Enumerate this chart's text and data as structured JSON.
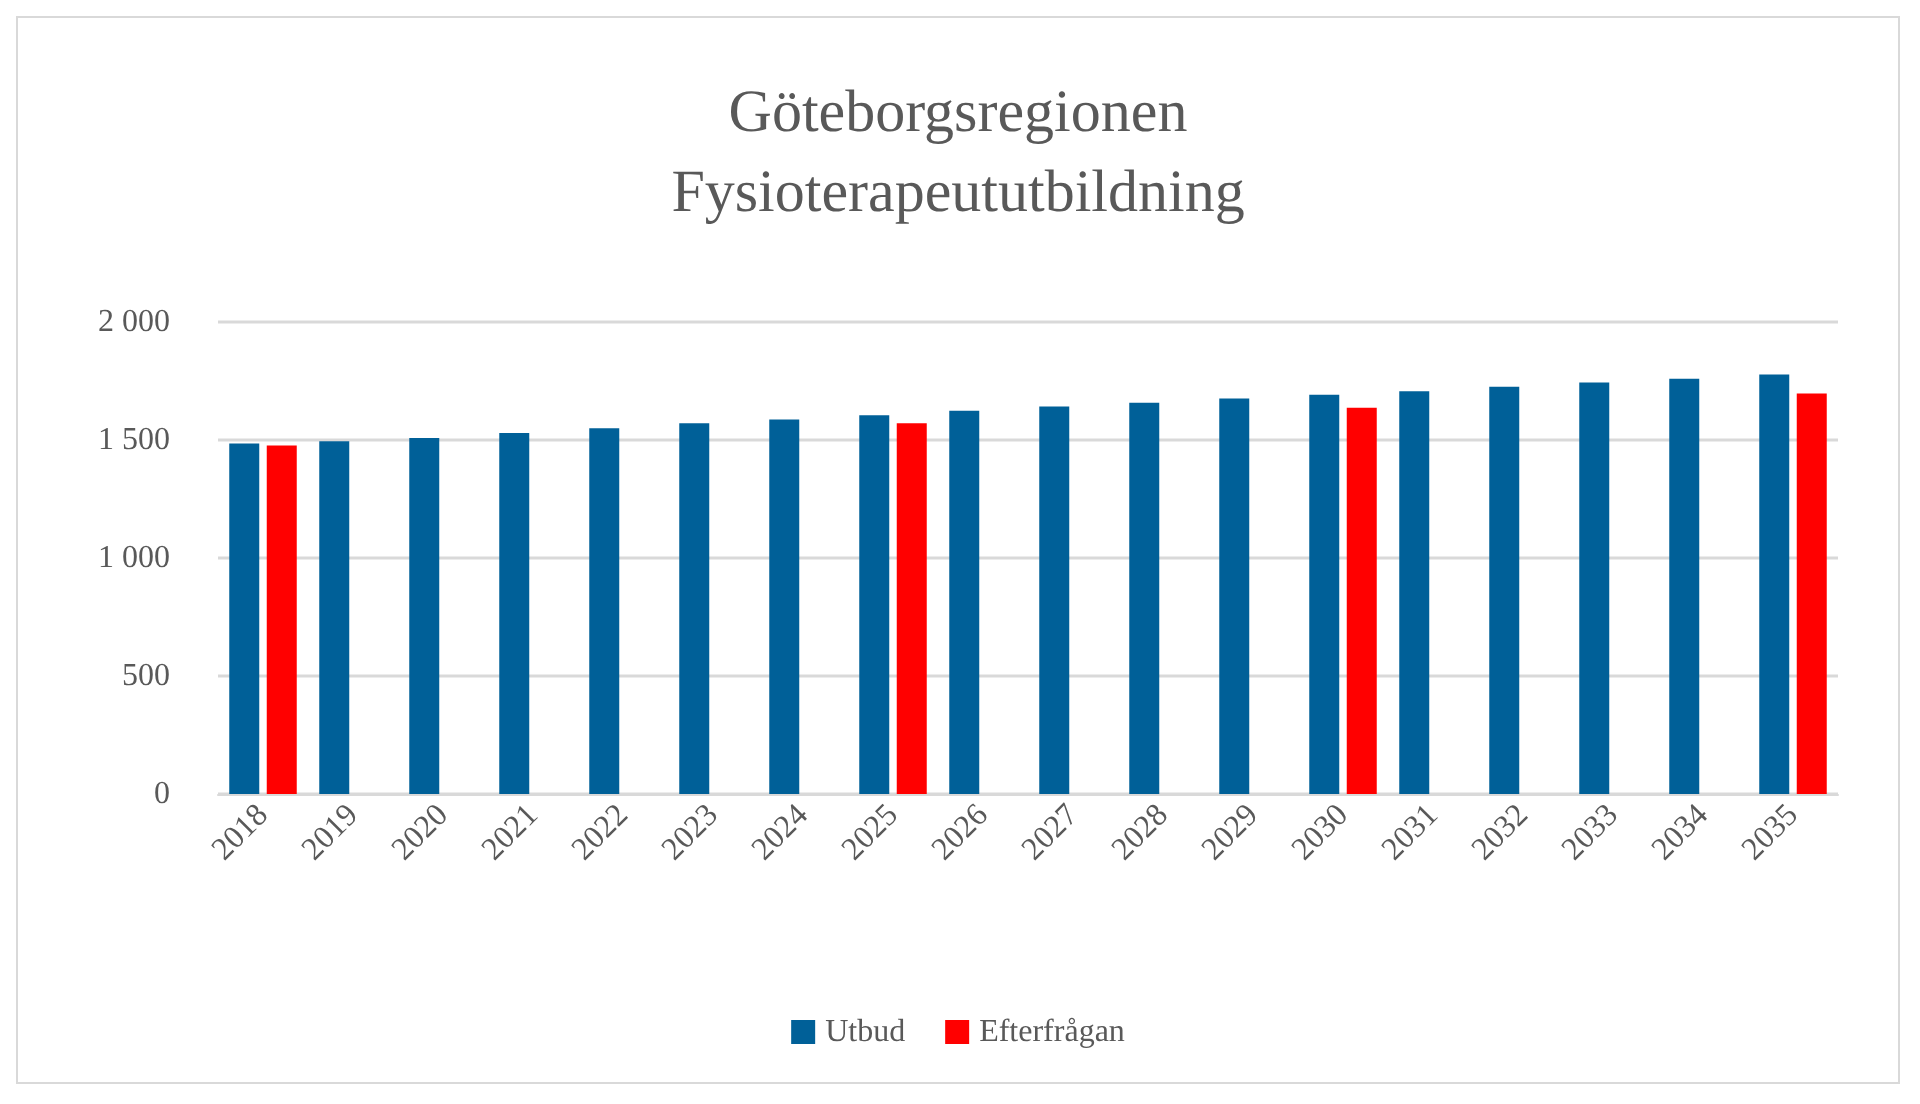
{
  "chart_data": {
    "type": "bar",
    "title": "Göteborgsregionen\nFysioterapeututbildning",
    "categories": [
      "2018",
      "2019",
      "2020",
      "2021",
      "2022",
      "2023",
      "2024",
      "2025",
      "2026",
      "2027",
      "2028",
      "2029",
      "2030",
      "2031",
      "2032",
      "2033",
      "2034",
      "2035"
    ],
    "series": [
      {
        "name": "Utbud",
        "color": "#006098",
        "values": [
          1485,
          1495,
          1509,
          1530,
          1550,
          1571,
          1587,
          1605,
          1624,
          1642,
          1658,
          1676,
          1692,
          1707,
          1726,
          1744,
          1760,
          1778
        ]
      },
      {
        "name": "Efterfrågan",
        "color": "#ff0000",
        "values": [
          1477,
          null,
          null,
          null,
          null,
          null,
          null,
          1571,
          null,
          null,
          null,
          null,
          1637,
          null,
          null,
          null,
          null,
          1697
        ]
      }
    ],
    "ylim": [
      0,
      2000
    ],
    "yticks": [
      0,
      500,
      {
        "value": 1000,
        "label": "1 000"
      },
      {
        "value": 1500,
        "label": "1 500"
      },
      {
        "value": 2000,
        "label": "2 000"
      }
    ],
    "grid": "y",
    "legend": "bottom"
  }
}
